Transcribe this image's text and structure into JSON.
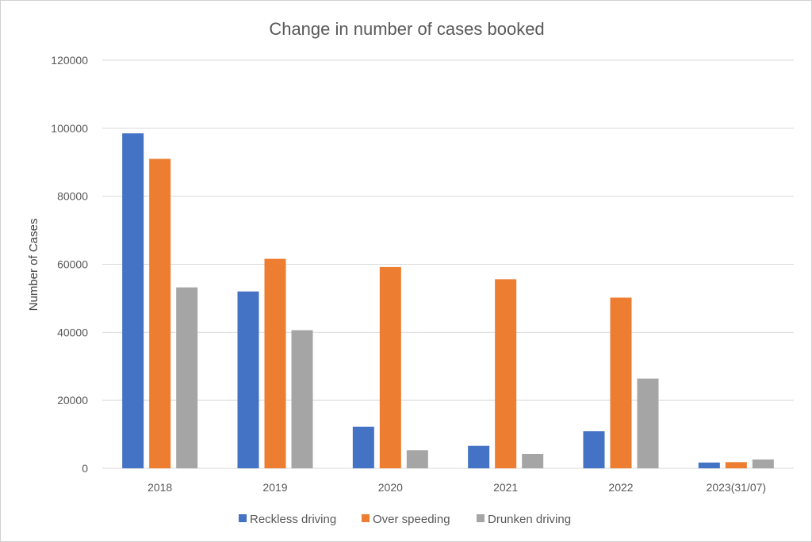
{
  "chart_data": {
    "type": "bar",
    "title": "Change in number of cases booked",
    "xlabel": "",
    "ylabel": "Number of Cases",
    "ylim": [
      0,
      120000
    ],
    "yticks": [
      0,
      20000,
      40000,
      60000,
      80000,
      100000,
      120000
    ],
    "categories": [
      "2018",
      "2019",
      "2020",
      "2021",
      "2022",
      "2023(31/07)"
    ],
    "series": [
      {
        "name": "Reckless driving",
        "color": "#4472C4",
        "values": [
          98500,
          52000,
          12200,
          6600,
          10900,
          1700
        ]
      },
      {
        "name": "Over speeding",
        "color": "#ED7D31",
        "values": [
          91000,
          61600,
          59200,
          55600,
          50200,
          1800
        ]
      },
      {
        "name": "Drunken driving",
        "color": "#A5A5A5",
        "values": [
          53200,
          40600,
          5300,
          4200,
          26400,
          2600
        ]
      }
    ],
    "grid": true,
    "legend": "bottom"
  }
}
